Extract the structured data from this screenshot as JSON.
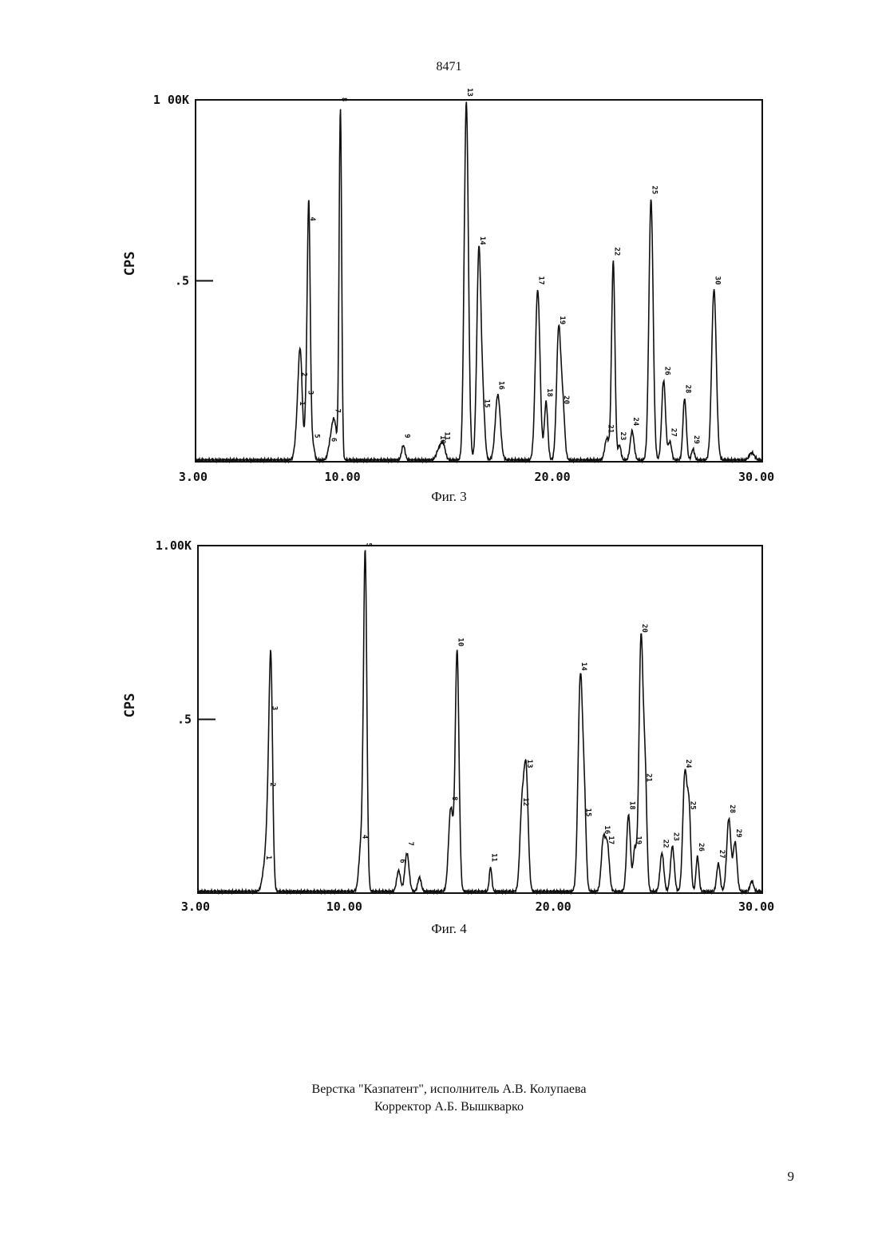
{
  "document_number": "8471",
  "page_number": "9",
  "footer": {
    "line1": "Верстка \"Казпатент\", исполнитель А.В. Колупаева",
    "line2": "Корректор А.Б. Вышкварко"
  },
  "chart_data": [
    {
      "type": "line",
      "caption": "Фиг. 3",
      "ylabel": "CPS",
      "xlim": [
        3,
        30
      ],
      "ylim": [
        0,
        1
      ],
      "y_tick_labels": [
        {
          "value": 1.0,
          "label": "1 00K"
        },
        {
          "value": 0.5,
          "label": ".5"
        }
      ],
      "x_tick_labels": [
        {
          "value": 3,
          "label": "3.00"
        },
        {
          "value": 10,
          "label": "10.00"
        },
        {
          "value": 20,
          "label": "20.00"
        },
        {
          "value": 30,
          "label": "30.00"
        }
      ],
      "baseline": 0.005,
      "peaks": [
        {
          "x": 7.9,
          "y": 0.13,
          "w": 0.12,
          "label": "1"
        },
        {
          "x": 8.0,
          "y": 0.21,
          "w": 0.09,
          "label": "2"
        },
        {
          "x": 8.3,
          "y": 0.16,
          "w": 0.08,
          "label": "3"
        },
        {
          "x": 8.4,
          "y": 0.64,
          "w": 0.07,
          "label": "4"
        },
        {
          "x": 8.6,
          "y": 0.04,
          "w": 0.07,
          "label": "5"
        },
        {
          "x": 9.4,
          "y": 0.03,
          "w": 0.1,
          "label": "6"
        },
        {
          "x": 9.6,
          "y": 0.11,
          "w": 0.12,
          "label": "7"
        },
        {
          "x": 9.9,
          "y": 0.97,
          "w": 0.06,
          "label": "8"
        },
        {
          "x": 12.9,
          "y": 0.04,
          "w": 0.08,
          "label": "9"
        },
        {
          "x": 14.6,
          "y": 0.03,
          "w": 0.12,
          "label": "10"
        },
        {
          "x": 14.8,
          "y": 0.04,
          "w": 0.1,
          "label": "11"
        },
        {
          "x": 15.9,
          "y": 0.99,
          "w": 0.1,
          "label": "13"
        },
        {
          "x": 16.5,
          "y": 0.58,
          "w": 0.1,
          "label": "14"
        },
        {
          "x": 16.7,
          "y": 0.13,
          "w": 0.09,
          "label": "15"
        },
        {
          "x": 17.4,
          "y": 0.18,
          "w": 0.12,
          "label": "16"
        },
        {
          "x": 19.3,
          "y": 0.47,
          "w": 0.11,
          "label": "17"
        },
        {
          "x": 19.7,
          "y": 0.16,
          "w": 0.08,
          "label": "18"
        },
        {
          "x": 20.3,
          "y": 0.36,
          "w": 0.1,
          "label": "19"
        },
        {
          "x": 20.5,
          "y": 0.14,
          "w": 0.09,
          "label": "20"
        },
        {
          "x": 22.6,
          "y": 0.06,
          "w": 0.1,
          "label": "21"
        },
        {
          "x": 22.9,
          "y": 0.55,
          "w": 0.08,
          "label": "22"
        },
        {
          "x": 23.2,
          "y": 0.04,
          "w": 0.07,
          "label": "23"
        },
        {
          "x": 23.8,
          "y": 0.08,
          "w": 0.09,
          "label": "24"
        },
        {
          "x": 24.7,
          "y": 0.72,
          "w": 0.1,
          "label": "25"
        },
        {
          "x": 25.3,
          "y": 0.22,
          "w": 0.09,
          "label": "26"
        },
        {
          "x": 25.6,
          "y": 0.05,
          "w": 0.08,
          "label": "27"
        },
        {
          "x": 26.3,
          "y": 0.17,
          "w": 0.08,
          "label": "28"
        },
        {
          "x": 26.7,
          "y": 0.03,
          "w": 0.07,
          "label": "29"
        },
        {
          "x": 27.7,
          "y": 0.47,
          "w": 0.11,
          "label": "30"
        },
        {
          "x": 29.5,
          "y": 0.02,
          "w": 0.12,
          "label": ""
        }
      ]
    },
    {
      "type": "line",
      "caption": "Фиг. 4",
      "ylabel": "CPS",
      "xlim": [
        3,
        30
      ],
      "ylim": [
        0,
        1
      ],
      "y_tick_labels": [
        {
          "value": 1.0,
          "label": "1.00K"
        },
        {
          "value": 0.5,
          "label": ".5"
        }
      ],
      "x_tick_labels": [
        {
          "value": 3,
          "label": "3.00"
        },
        {
          "value": 10,
          "label": "10.00"
        },
        {
          "value": 20,
          "label": "20.00"
        },
        {
          "value": 30,
          "label": "30.00"
        }
      ],
      "baseline": 0.005,
      "peaks": [
        {
          "x": 6.2,
          "y": 0.07,
          "w": 0.12,
          "label": "1"
        },
        {
          "x": 6.4,
          "y": 0.28,
          "w": 0.1,
          "label": "2"
        },
        {
          "x": 6.5,
          "y": 0.5,
          "w": 0.08,
          "label": "3"
        },
        {
          "x": 10.8,
          "y": 0.13,
          "w": 0.1,
          "label": "4"
        },
        {
          "x": 11.0,
          "y": 0.97,
          "w": 0.08,
          "label": "5"
        },
        {
          "x": 12.6,
          "y": 0.06,
          "w": 0.09,
          "label": "6"
        },
        {
          "x": 13.0,
          "y": 0.11,
          "w": 0.1,
          "label": "7"
        },
        {
          "x": 13.6,
          "y": 0.04,
          "w": 0.08,
          "label": ""
        },
        {
          "x": 15.1,
          "y": 0.24,
          "w": 0.11,
          "label": "8"
        },
        {
          "x": 15.4,
          "y": 0.69,
          "w": 0.09,
          "label": "10"
        },
        {
          "x": 17.0,
          "y": 0.07,
          "w": 0.06,
          "label": "11"
        },
        {
          "x": 18.5,
          "y": 0.23,
          "w": 0.1,
          "label": "12"
        },
        {
          "x": 18.7,
          "y": 0.34,
          "w": 0.1,
          "label": "13"
        },
        {
          "x": 21.3,
          "y": 0.62,
          "w": 0.11,
          "label": "14"
        },
        {
          "x": 21.5,
          "y": 0.2,
          "w": 0.08,
          "label": "15"
        },
        {
          "x": 22.4,
          "y": 0.15,
          "w": 0.1,
          "label": "16"
        },
        {
          "x": 22.6,
          "y": 0.12,
          "w": 0.09,
          "label": "17"
        },
        {
          "x": 23.6,
          "y": 0.22,
          "w": 0.09,
          "label": "18"
        },
        {
          "x": 23.9,
          "y": 0.12,
          "w": 0.08,
          "label": "19"
        },
        {
          "x": 24.2,
          "y": 0.73,
          "w": 0.1,
          "label": "20"
        },
        {
          "x": 24.4,
          "y": 0.3,
          "w": 0.08,
          "label": "21"
        },
        {
          "x": 25.2,
          "y": 0.11,
          "w": 0.09,
          "label": "22"
        },
        {
          "x": 25.7,
          "y": 0.13,
          "w": 0.09,
          "label": "23"
        },
        {
          "x": 26.3,
          "y": 0.34,
          "w": 0.1,
          "label": "24"
        },
        {
          "x": 26.5,
          "y": 0.22,
          "w": 0.08,
          "label": "25"
        },
        {
          "x": 26.9,
          "y": 0.1,
          "w": 0.07,
          "label": "26"
        },
        {
          "x": 27.9,
          "y": 0.08,
          "w": 0.08,
          "label": "27"
        },
        {
          "x": 28.4,
          "y": 0.21,
          "w": 0.1,
          "label": "28"
        },
        {
          "x": 28.7,
          "y": 0.14,
          "w": 0.09,
          "label": "29"
        },
        {
          "x": 29.5,
          "y": 0.03,
          "w": 0.08,
          "label": ""
        }
      ]
    }
  ]
}
